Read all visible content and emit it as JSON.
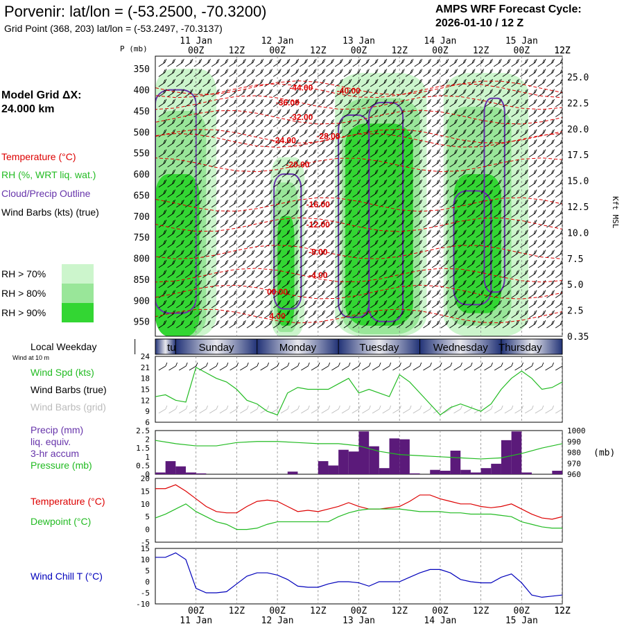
{
  "header": {
    "title": "Porvenir:  lat/lon = (-53.2500, -70.3200)",
    "subtitle": "Grid Point (368, 203) lat/lon = (-53.2497, -70.3137)",
    "cycle_line1": "AMPS WRF Forecast Cycle:",
    "cycle_line2": "2026-01-10 / 12  Z"
  },
  "left_panel": {
    "grid_label1": "Model Grid ΔX:",
    "grid_label2": " 24.000 km",
    "legend_temperature": "Temperature (°C)",
    "legend_rh": "RH (%, WRT liq. wat.)",
    "legend_cloud": "Cloud/Precip Outline",
    "legend_wind": "Wind Barbs (kts) (true)",
    "rh_levels": [
      "RH > 70%",
      "RH > 80%",
      "RH > 90%"
    ],
    "weekday_label": "Local Weekday",
    "wind_10m_label": "Wind at 10 m",
    "wind_spd_label": "Wind Spd (kts)",
    "wind_barbs_true": "Wind Barbs (true)",
    "wind_barbs_grid": "Wind Barbs (grid)",
    "precip_label1": "Precip (mm)",
    "precip_label2": "liq. equiv.",
    "precip_label3": "3-hr accum",
    "pressure_label": "Pressure (mb)",
    "temperature_label": "Temperature (°C)",
    "dewpoint_label": "Dewpoint (°C)",
    "windchill_label": "Wind Chill T (°C)"
  },
  "colors": {
    "temperature": "#dd0000",
    "rh70": "#ccf5cc",
    "rh80": "#99e699",
    "rh90": "#33d633",
    "cloud": "#6633aa",
    "precip": "#5b1a7a",
    "dewpoint": "#22bb22",
    "windspd": "#22bb22",
    "windchill": "#0000bb",
    "grid_barbs": "#bbbbbb"
  },
  "chart_data": [
    {
      "type": "heatmap",
      "title": "Time-height cross section",
      "ylabel": "P (mb)",
      "y2label": "Kft MSL",
      "x_ticks": [
        "00Z",
        "12Z",
        "00Z",
        "12Z",
        "00Z",
        "12Z",
        "00Z",
        "12Z",
        "00Z",
        "12Z"
      ],
      "x_ticks_hours": [
        12,
        24,
        36,
        48,
        60,
        72,
        84,
        96,
        108,
        120
      ],
      "date_labels": [
        "11 Jan",
        "12 Jan",
        "13 Jan",
        "14 Jan",
        "15 Jan"
      ],
      "date_hours": [
        12,
        36,
        60,
        84,
        108
      ],
      "xlim_hours": [
        0,
        120
      ],
      "pressure_levels": [
        350,
        400,
        450,
        500,
        550,
        600,
        650,
        700,
        750,
        800,
        850,
        900,
        950
      ],
      "ylim_mb": [
        320,
        985
      ],
      "kft_ticks": [
        "25.0",
        "22.5",
        "20.0",
        "17.5",
        "15.0",
        "12.5",
        "10.0",
        "7.5",
        "5.0",
        "2.5",
        "0.35"
      ],
      "temperature_labels": [
        {
          "text": "-44.00",
          "hour": 43,
          "p": 395
        },
        {
          "text": "-40.00",
          "hour": 57,
          "p": 402
        },
        {
          "text": "-36.00",
          "hour": 39,
          "p": 430
        },
        {
          "text": "-32.00",
          "hour": 43,
          "p": 465
        },
        {
          "text": "-28.00",
          "hour": 51,
          "p": 510
        },
        {
          "text": "-24.00",
          "hour": 38,
          "p": 520
        },
        {
          "text": "-20.00",
          "hour": 42,
          "p": 578
        },
        {
          "text": "-16.00",
          "hour": 48,
          "p": 672
        },
        {
          "text": "-12.00",
          "hour": 48,
          "p": 720
        },
        {
          "text": "-8.00",
          "hour": 48,
          "p": 785
        },
        {
          "text": "-4.00",
          "hour": 48,
          "p": 840
        },
        {
          "text": "00.00",
          "hour": 36,
          "p": 880
        },
        {
          "text": "4.00",
          "hour": 36,
          "p": 937
        }
      ],
      "rh_blobs": [
        {
          "level": 70,
          "hours": [
            0,
            18
          ],
          "p": [
            350,
            985
          ]
        },
        {
          "level": 80,
          "hours": [
            0,
            15
          ],
          "p": [
            450,
            985
          ]
        },
        {
          "level": 90,
          "hours": [
            0,
            13
          ],
          "p": [
            600,
            985
          ]
        },
        {
          "level": 70,
          "hours": [
            34,
            44
          ],
          "p": [
            560,
            985
          ]
        },
        {
          "level": 80,
          "hours": [
            35,
            42
          ],
          "p": [
            620,
            975
          ]
        },
        {
          "level": 90,
          "hours": [
            36,
            41
          ],
          "p": [
            700,
            960
          ]
        },
        {
          "level": 70,
          "hours": [
            53,
            80
          ],
          "p": [
            360,
            985
          ]
        },
        {
          "level": 80,
          "hours": [
            55,
            78
          ],
          "p": [
            420,
            980
          ]
        },
        {
          "level": 90,
          "hours": [
            56,
            76
          ],
          "p": [
            480,
            960
          ]
        },
        {
          "level": 70,
          "hours": [
            85,
            110
          ],
          "p": [
            360,
            985
          ]
        },
        {
          "level": 80,
          "hours": [
            86,
            105
          ],
          "p": [
            440,
            960
          ]
        },
        {
          "level": 90,
          "hours": [
            88,
            102
          ],
          "p": [
            600,
            930
          ]
        }
      ],
      "cloud_outlines": [
        {
          "hours": [
            0,
            12
          ],
          "p": [
            400,
            930
          ]
        },
        {
          "hours": [
            35,
            43
          ],
          "p": [
            600,
            920
          ]
        },
        {
          "hours": [
            54,
            63
          ],
          "p": [
            460,
            940
          ]
        },
        {
          "hours": [
            63,
            73
          ],
          "p": [
            430,
            950
          ]
        },
        {
          "hours": [
            88,
            99
          ],
          "p": [
            640,
            910
          ]
        },
        {
          "hours": [
            97,
            103
          ],
          "p": [
            420,
            880
          ]
        }
      ]
    },
    {
      "type": "line",
      "title": "Wind Spd (kts)",
      "ylim": [
        6,
        24
      ],
      "yticks": [
        24,
        21,
        18,
        15,
        12,
        9,
        6
      ],
      "x_hours": [
        0,
        3,
        6,
        9,
        12,
        15,
        18,
        21,
        24,
        27,
        30,
        33,
        36,
        39,
        42,
        45,
        48,
        51,
        54,
        57,
        60,
        63,
        66,
        69,
        72,
        75,
        78,
        81,
        84,
        87,
        90,
        93,
        96,
        99,
        102,
        105,
        108,
        111,
        114,
        117,
        120
      ],
      "values": [
        13,
        13.5,
        12,
        11.5,
        21,
        19.5,
        18,
        17,
        15,
        12,
        11,
        9,
        8,
        14,
        15.5,
        15,
        15,
        15,
        16.5,
        18,
        14,
        15,
        14,
        13,
        19,
        17,
        14,
        11,
        8,
        10,
        11,
        10,
        9,
        11,
        15,
        18,
        20,
        18,
        15,
        15.5,
        17
      ]
    },
    {
      "type": "bar",
      "title": "Precip (mm) liq. equiv. 3-hr accum",
      "ylim": [
        0,
        2.5
      ],
      "yticks": [
        2.5,
        2,
        1.5,
        1,
        0.5,
        0
      ],
      "x_hours_start": [
        0,
        3,
        6,
        9,
        12,
        15,
        18,
        21,
        24,
        27,
        30,
        33,
        36,
        39,
        42,
        45,
        48,
        51,
        54,
        57,
        60,
        63,
        66,
        69,
        72,
        75,
        78,
        81,
        84,
        87,
        90,
        93,
        96,
        99,
        102,
        105,
        108,
        111,
        114,
        117
      ],
      "values": [
        0.1,
        0.75,
        0.45,
        0.1,
        0.05,
        0,
        0,
        0,
        0,
        0,
        0,
        0,
        0,
        0.15,
        0,
        0,
        0.75,
        0.5,
        1.4,
        1.3,
        2.45,
        1.6,
        0.35,
        2.05,
        2.0,
        0.05,
        0,
        0.25,
        0.2,
        1.35,
        0.25,
        0.1,
        0.35,
        0.6,
        1.95,
        2.45,
        0.1,
        0,
        0,
        0.2
      ]
    },
    {
      "type": "line",
      "title": "Pressure (mb)",
      "ylim": [
        960,
        1000
      ],
      "yticks": [
        1000,
        990,
        980,
        970,
        960
      ],
      "x_hours": [
        0,
        6,
        12,
        18,
        24,
        30,
        36,
        42,
        48,
        54,
        60,
        66,
        72,
        78,
        84,
        90,
        96,
        102,
        108,
        114,
        120
      ],
      "values": [
        991,
        988,
        986,
        986,
        989,
        990,
        990,
        989,
        988,
        988,
        986,
        981,
        978,
        977,
        976,
        975,
        974,
        975,
        979,
        984,
        988
      ]
    },
    {
      "type": "line",
      "title": "Temperature / Dewpoint (°C)",
      "ylim": [
        -5,
        20
      ],
      "yticks": [
        20,
        15,
        10,
        5,
        0,
        -5
      ],
      "x_hours": [
        0,
        3,
        6,
        9,
        12,
        15,
        18,
        21,
        24,
        27,
        30,
        33,
        36,
        39,
        42,
        45,
        48,
        51,
        54,
        57,
        60,
        63,
        66,
        69,
        72,
        75,
        78,
        81,
        84,
        87,
        90,
        93,
        96,
        99,
        102,
        105,
        108,
        111,
        114,
        117,
        120
      ],
      "series": [
        {
          "name": "Temperature",
          "values": [
            16,
            16,
            17.5,
            15,
            12,
            9,
            7,
            6.5,
            6.5,
            9,
            11,
            11.5,
            11,
            9,
            7,
            7.5,
            7,
            8,
            9,
            10.5,
            9,
            8,
            8,
            8.5,
            9,
            11,
            13.5,
            13.5,
            12,
            11,
            10,
            10,
            9,
            8.5,
            9,
            10,
            8,
            6,
            4.5,
            4,
            5
          ]
        },
        {
          "name": "Dewpoint",
          "values": [
            4.5,
            6,
            8,
            10,
            7,
            5,
            3,
            2,
            0,
            0,
            0.5,
            2,
            3,
            3,
            3,
            3,
            3,
            3,
            5,
            6.5,
            7.5,
            8,
            8,
            8,
            8,
            7.5,
            7,
            7,
            7,
            6.5,
            6.5,
            6,
            6,
            6,
            5.5,
            5,
            3,
            2,
            1,
            0.5,
            0.5
          ]
        }
      ]
    },
    {
      "type": "line",
      "title": "Wind Chill T (°C)",
      "ylim": [
        -10,
        15
      ],
      "yticks": [
        15,
        10,
        5,
        0,
        -5,
        -10
      ],
      "x_hours": [
        0,
        3,
        6,
        9,
        12,
        15,
        18,
        21,
        24,
        27,
        30,
        33,
        36,
        39,
        42,
        45,
        48,
        51,
        54,
        57,
        60,
        63,
        66,
        69,
        72,
        75,
        78,
        81,
        84,
        87,
        90,
        93,
        96,
        99,
        102,
        105,
        108,
        111,
        114,
        117,
        120
      ],
      "values": [
        11,
        11,
        13,
        10,
        -3,
        -5,
        -5,
        -4.5,
        -1,
        2.5,
        4,
        4,
        3,
        1,
        -2,
        -2.5,
        -2.5,
        -1,
        0,
        0,
        -0.5,
        -2,
        0,
        0,
        0,
        2,
        4,
        5.5,
        5.5,
        4,
        1,
        0,
        -0.5,
        -0.5,
        2,
        3.5,
        -0.5,
        -6,
        -7,
        -6.5,
        -6
      ]
    }
  ],
  "weekdays": [
    {
      "label": "turday",
      "start": -6,
      "end": 6
    },
    {
      "label": "Sunday",
      "start": 6,
      "end": 30
    },
    {
      "label": "Monday",
      "start": 30,
      "end": 54
    },
    {
      "label": "Tuesday",
      "start": 54,
      "end": 78
    },
    {
      "label": "Wednesday",
      "start": 78,
      "end": 102
    },
    {
      "label": "Thursday",
      "start": 102,
      "end": 126
    }
  ]
}
